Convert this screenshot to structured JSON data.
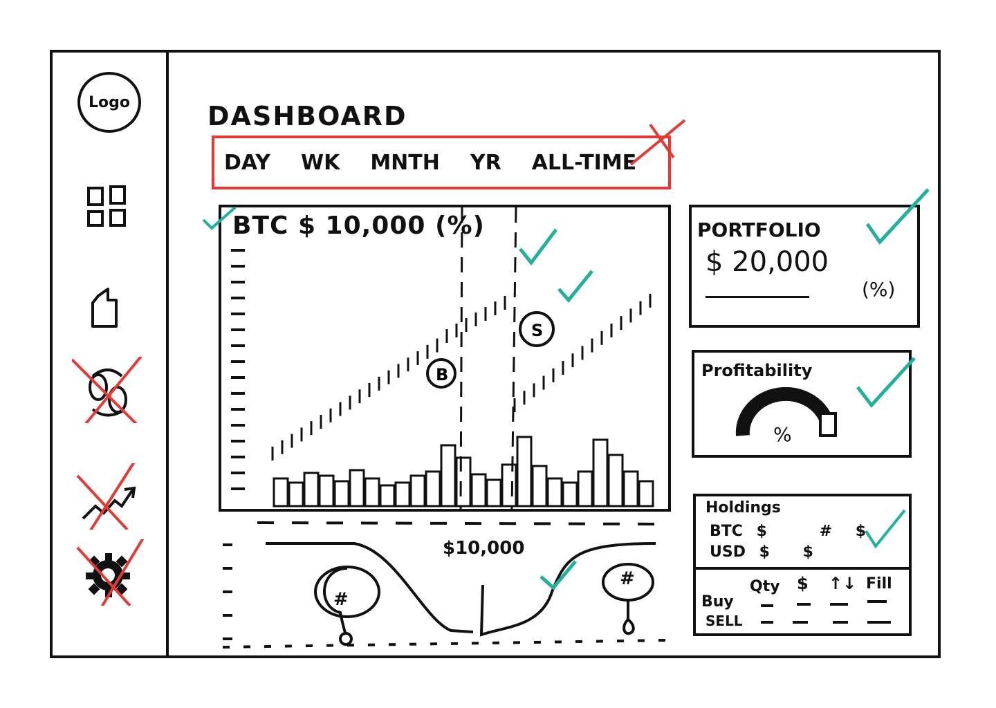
{
  "sidebar": {
    "logo_label": "Logo",
    "items": [
      {
        "icon": "dashboard-grid-icon",
        "crossed": false
      },
      {
        "icon": "wallet-icon",
        "crossed": false
      },
      {
        "icon": "exchange-icon",
        "crossed": true
      },
      {
        "icon": "trend-icon",
        "crossed": true
      },
      {
        "icon": "gear-icon",
        "crossed": true
      }
    ]
  },
  "header": {
    "title": "DASHBOARD",
    "ranges": [
      "DAY",
      "WK",
      "MNTH",
      "YR",
      "ALL-TIME"
    ]
  },
  "chart": {
    "title": "BTC $ 10,000 (%)",
    "buy_marker": "B",
    "sell_marker": "S"
  },
  "depth": {
    "price_label": "$10,000",
    "left_pin": "#",
    "right_pin": "#"
  },
  "portfolio": {
    "title": "PORTFOLIO",
    "value": "$ 20,000",
    "sub": "(%)"
  },
  "profitability": {
    "title": "Profitability",
    "gauge_label": "%"
  },
  "holdings": {
    "title": "Holdings",
    "rows": [
      {
        "label": "BTC",
        "c1": "$",
        "c2": "#",
        "c3": "$"
      },
      {
        "label": "USD",
        "c1": "$",
        "c2": "$",
        "c3": ""
      }
    ]
  },
  "orders": {
    "columns": [
      "Qty",
      "$",
      "↑↓",
      "Fill"
    ],
    "actions": [
      "Buy",
      "SELL"
    ]
  },
  "colors": {
    "ink": "#111111",
    "red": "#e53935",
    "teal": "#1fb19a"
  }
}
